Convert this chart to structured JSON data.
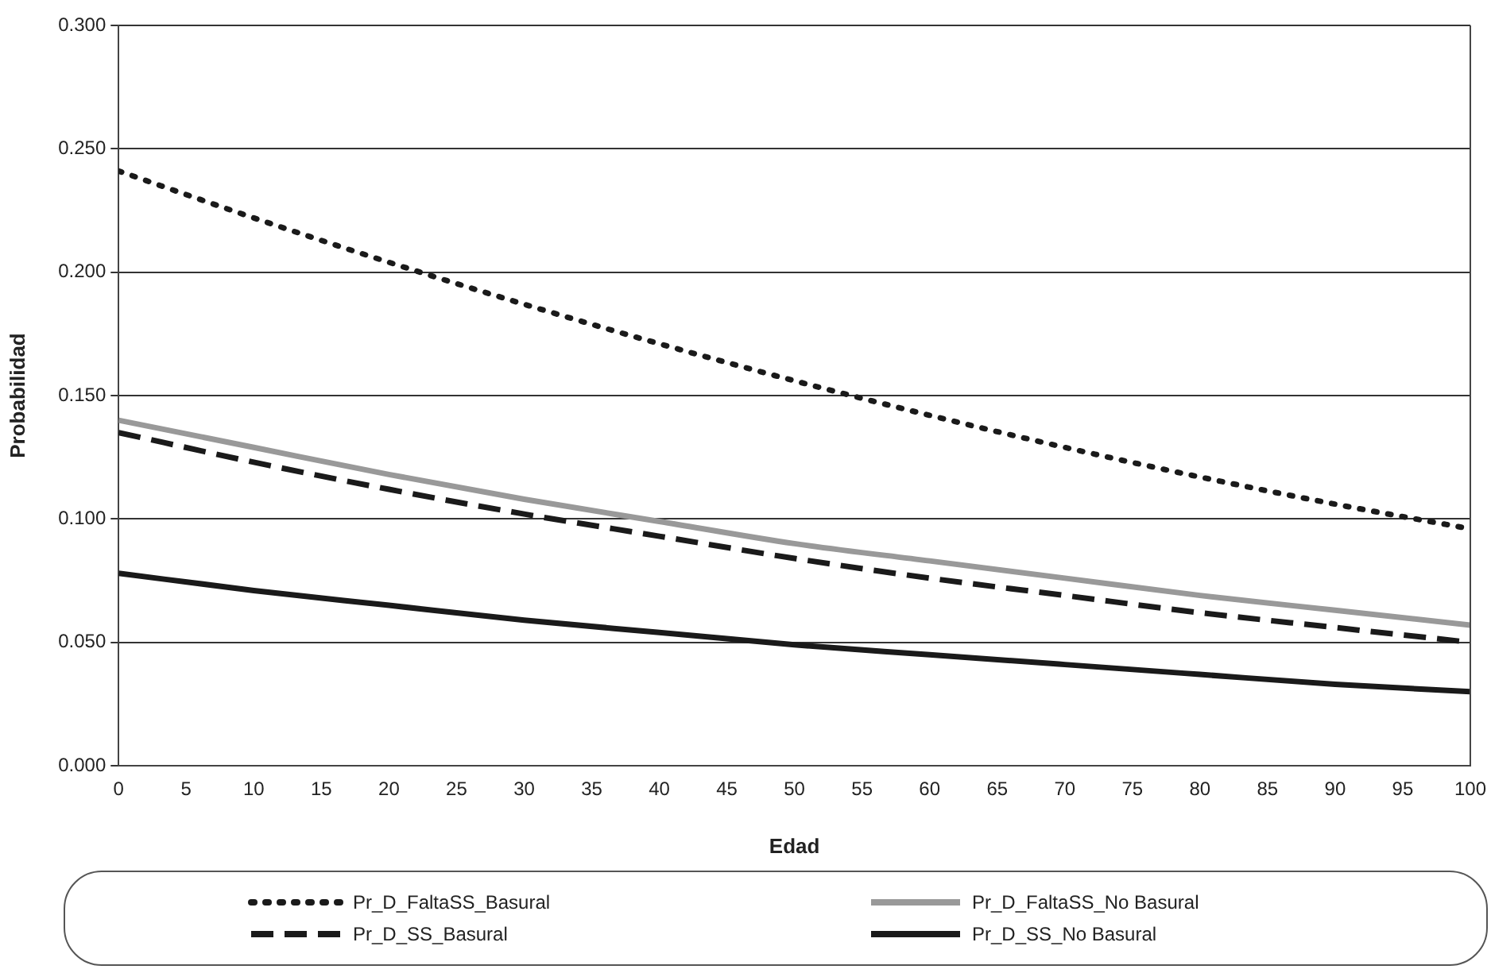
{
  "chart_data": {
    "type": "line",
    "xlabel": "Edad",
    "ylabel": "Probabilidad",
    "x": [
      0,
      10,
      20,
      30,
      40,
      50,
      60,
      70,
      80,
      90,
      100
    ],
    "series": [
      {
        "name": "Pr_D_FaltaSS_Basural",
        "color": "#1a1a1a",
        "line_style": "dotted",
        "values": [
          0.241,
          0.222,
          0.204,
          0.187,
          0.171,
          0.156,
          0.142,
          0.129,
          0.117,
          0.106,
          0.096
        ]
      },
      {
        "name": "Pr_D_FaltaSS_No Basural",
        "color": "#999999",
        "line_style": "solid",
        "values": [
          0.14,
          0.129,
          0.118,
          0.108,
          0.099,
          0.09,
          0.083,
          0.076,
          0.069,
          0.063,
          0.057
        ]
      },
      {
        "name": "Pr_D_SS_Basural",
        "color": "#1a1a1a",
        "line_style": "dashed",
        "values": [
          0.135,
          0.123,
          0.112,
          0.102,
          0.093,
          0.084,
          0.076,
          0.069,
          0.062,
          0.056,
          0.05
        ]
      },
      {
        "name": "Pr_D_SS_No Basural",
        "color": "#1a1a1a",
        "line_style": "solid",
        "values": [
          0.078,
          0.071,
          0.065,
          0.059,
          0.054,
          0.049,
          0.045,
          0.041,
          0.037,
          0.033,
          0.03
        ]
      }
    ],
    "xlim": [
      0,
      100
    ],
    "xticks": [
      0,
      5,
      10,
      15,
      20,
      25,
      30,
      35,
      40,
      45,
      50,
      55,
      60,
      65,
      70,
      75,
      80,
      85,
      90,
      95,
      100
    ],
    "ylim": [
      0,
      0.3
    ],
    "yticks": [
      {
        "value": 0,
        "label": "0.000"
      },
      {
        "value": 0.05,
        "label": "0.050"
      },
      {
        "value": 0.1,
        "label": "0.100"
      },
      {
        "value": 0.15,
        "label": "0.150"
      },
      {
        "value": 0.2,
        "label": "0.200"
      },
      {
        "value": 0.25,
        "label": "0.250"
      },
      {
        "value": 0.3,
        "label": "0.300"
      }
    ],
    "grid": "y",
    "legend": "bottom",
    "marker": "none"
  }
}
